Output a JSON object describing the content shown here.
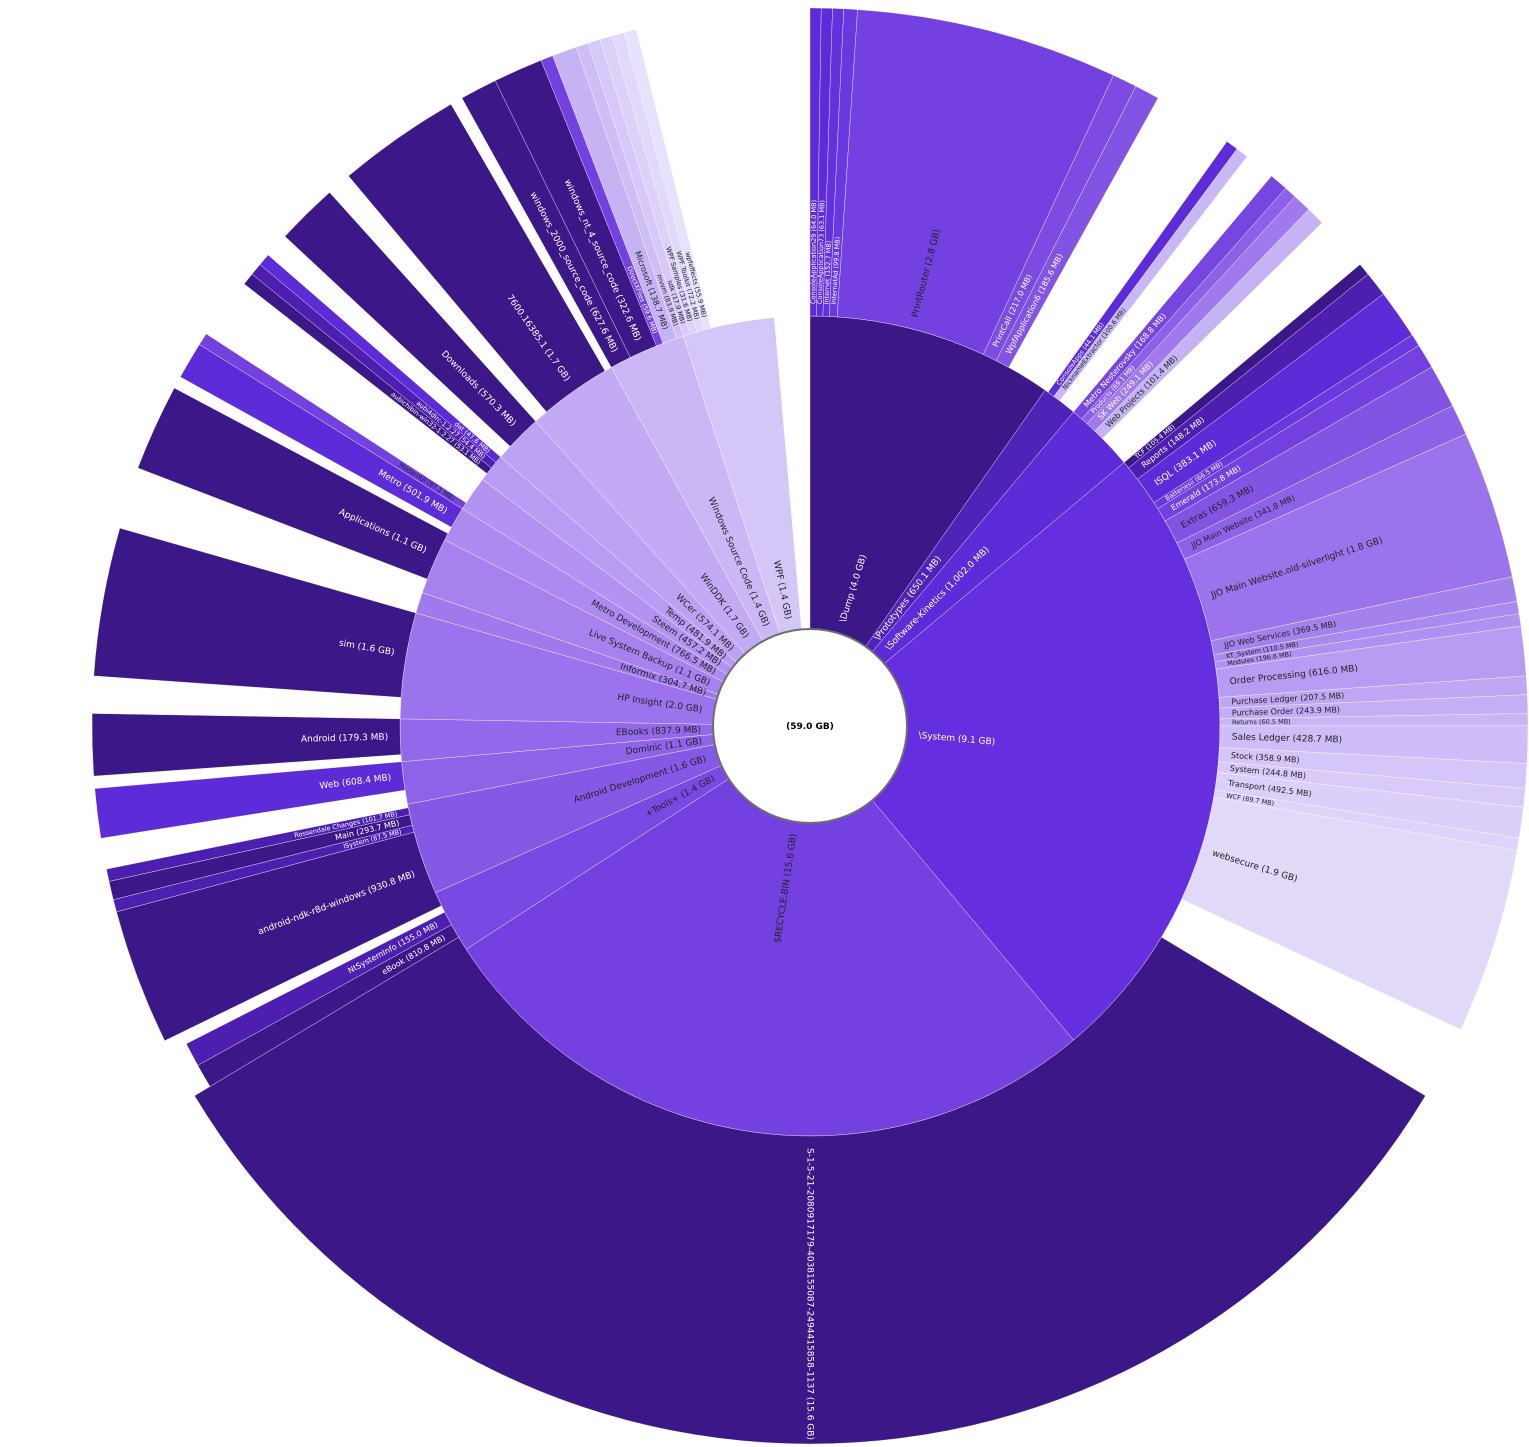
{
  "center_label": "(59.0 GB)",
  "colors": {
    "inner_dark": "#3c1787",
    "inner_violet": "#5e2bd8",
    "inner_medium": "#7441e0",
    "outer_pale": "#e2d9f8",
    "background": "#ffffff"
  },
  "rings": {
    "ring1": [
      {
        "label": "\\Dump (4.0 GB)",
        "fill": "#3c1787",
        "text": "#ffffff"
      },
      {
        "label": "\\Prototypes (650.1 MB)",
        "fill": "#4f22b8",
        "text": "#ffffff"
      },
      {
        "label": "\\Software-Kinetics (1,002.0 MB)",
        "fill": "#5e2bd8",
        "text": "#ffffff"
      },
      {
        "label": "\\System (9.1 GB)",
        "fill": "#652fe0",
        "text": "#ffffff"
      },
      {
        "label": "$RECYCLE.BIN (15.6 GB)",
        "fill": "#7441e0",
        "text": "#222222"
      },
      {
        "label": "+Tools+ (1.4 GB)",
        "fill": "#7a49e3",
        "text": "#222222"
      },
      {
        "label": "Android Development (1.6 GB)",
        "fill": "#8658e6",
        "text": "#222222"
      },
      {
        "label": "Dominic (1.1 GB)",
        "fill": "#8e63e8",
        "text": "#222222"
      },
      {
        "label": "EBooks (837.9 MB)",
        "fill": "#9468ea",
        "text": "#222222"
      },
      {
        "label": "HP Insight (2.0 GB)",
        "fill": "#9b73ec",
        "text": "#222222"
      },
      {
        "label": "Informix (304.7 MB)",
        "fill": "#a07aed",
        "text": "#222222"
      },
      {
        "label": "Live System Backup (1.1 GB)",
        "fill": "#a782ef",
        "text": "#222222"
      },
      {
        "label": "Metro Development (766.5 MB)",
        "fill": "#ad8af0",
        "text": "#222222"
      },
      {
        "label": "Steem (457.2 MB)",
        "fill": "#b393f1",
        "text": "#222222"
      },
      {
        "label": "Temp (481.9 MB)",
        "fill": "#b89bf2",
        "text": "#222222"
      },
      {
        "label": "WCer (574.1 MB)",
        "fill": "#bda2f3",
        "text": "#222222"
      },
      {
        "label": "WinDDK (1.7 GB)",
        "fill": "#c3aaf4",
        "text": "#222222"
      },
      {
        "label": "Windows Source Code (1.4 GB)",
        "fill": "#cbb7f6",
        "text": "#222222"
      },
      {
        "label": "WPF (1.4 GB)",
        "fill": "#d5c6f8",
        "text": "#222222"
      }
    ],
    "ring2": [
      {
        "label": "ConsoleApplication29 (64.0 MB)",
        "fill": "#5e2bd8",
        "text": "#ffffff"
      },
      {
        "label": "ConsoleApplication73 (63.1 MB)",
        "fill": "#5e2bd8",
        "text": "#ffffff"
      },
      {
        "label": "Internet (152.7 MB)",
        "fill": "#6332dc",
        "text": "#ffffff"
      },
      {
        "label": "InternetAd (99.8 MB)",
        "fill": "#6a38de",
        "text": "#ffffff"
      },
      {
        "label": "PrintRouter (2.8 GB)",
        "fill": "#7441e0",
        "text": "#222222"
      },
      {
        "label": "PrintCall (217.0 MB)",
        "fill": "#7d4ae2",
        "text": "#ffffff"
      },
      {
        "label": "WpfApplication6 (185.6 MB)",
        "fill": "#8354e4",
        "text": "#ffffff"
      },
      {
        "label": "ConsoleApps (44.1 MB)",
        "fill": "#5e2bd8",
        "text": "#ffffff"
      },
      {
        "label": "NicknameExtractor (100.6 MB)",
        "fill": "#c9b7f6",
        "text": "#222222"
      },
      {
        "label": "Metro Nesterovsky (168.8 MB)",
        "fill": "#7745e0",
        "text": "#ffffff"
      },
      {
        "label": "Products (69.1 MB)",
        "fill": "#8c61e7",
        "text": "#ffffff"
      },
      {
        "label": "SK Web (249.1 MB)",
        "fill": "#a07aed",
        "text": "#ffffff"
      },
      {
        "label": "Web Projects (101.4 MB)",
        "fill": "#c5b3f4",
        "text": "#222222"
      },
      {
        "label": "TCF (105.4 MB)",
        "fill": "#3c1787",
        "text": "#ffffff"
      },
      {
        "label": "Reports (148.2 MB)",
        "fill": "#4c1fb1",
        "text": "#ffffff"
      },
      {
        "label": "ISQL (383.1 MB)",
        "fill": "#5e2bd8",
        "text": "#ffffff"
      },
      {
        "label": "Batteriesii (66.5 MB)",
        "fill": "#6a38de",
        "text": "#ffffff"
      },
      {
        "label": "Emerald (173.8 MB)",
        "fill": "#7441e0",
        "text": "#ffffff"
      },
      {
        "label": "Extras (659.3 MB)",
        "fill": "#8354e4",
        "text": "#222222"
      },
      {
        "label": "JJO Main Website (341.8 MB)",
        "fill": "#8d62e8",
        "text": "#222222"
      },
      {
        "label": "JJO Main Website.old-silverlight (1.8 GB)",
        "fill": "#9b73ec",
        "text": "#222222"
      },
      {
        "label": "JJO Web Services (369.5 MB)",
        "fill": "#a482ee",
        "text": "#222222"
      },
      {
        "label": "KT_System (110.5 MB)",
        "fill": "#a98af0",
        "text": "#222222"
      },
      {
        "label": "Modules (196.6 MB)",
        "fill": "#af91f1",
        "text": "#222222"
      },
      {
        "label": "Order Processing (616.0 MB)",
        "fill": "#b89cf3",
        "text": "#222222"
      },
      {
        "label": "Purchase Ledger (207.5 MB)",
        "fill": "#bfa7f4",
        "text": "#222222"
      },
      {
        "label": "Purchase Order (243.9 MB)",
        "fill": "#c4aef5",
        "text": "#222222"
      },
      {
        "label": "Returns (60.5 MB)",
        "fill": "#c9b6f6",
        "text": "#222222"
      },
      {
        "label": "Sales Ledger (428.7 MB)",
        "fill": "#cebdf7",
        "text": "#222222"
      },
      {
        "label": "Stock (358.9 MB)",
        "fill": "#d4c6f8",
        "text": "#222222"
      },
      {
        "label": "System (244.8 MB)",
        "fill": "#d8cbf9",
        "text": "#222222"
      },
      {
        "label": "Transport (492.5 MB)",
        "fill": "#dbd0f9",
        "text": "#222222"
      },
      {
        "label": "WCF (89.7 MB)",
        "fill": "#ded3fa",
        "text": "#222222"
      },
      {
        "label": "websecure (1.9 GB)",
        "fill": "#e2d9f8",
        "text": "#222222"
      },
      {
        "label": "S-1-5-21-2080917179-4038155087-2494415858-1137 (15.6 GB)",
        "fill": "#3c1787",
        "text": "#ffffff"
      },
      {
        "label": "eBook (810.8 MB)",
        "fill": "#3c1787",
        "text": "#ffffff"
      },
      {
        "label": "NtSystemInfo (155.0 MB)",
        "fill": "#4c1fb1",
        "text": "#ffffff"
      },
      {
        "label": "android-ndk-r8d-windows (930.8 MB)",
        "fill": "#3c1787",
        "text": "#ffffff"
      },
      {
        "label": "ISystem (87.5 MB)",
        "fill": "#4c1fb1",
        "text": "#ffffff"
      },
      {
        "label": "Main (293.7 MB)",
        "fill": "#3c1787",
        "text": "#ffffff"
      },
      {
        "label": "Rossendale Changes (101.7 MB)",
        "fill": "#4c1fb1",
        "text": "#ffffff"
      },
      {
        "label": "Web (608.4 MB)",
        "fill": "#5e2bd8",
        "text": "#ffffff"
      },
      {
        "label": "Android (179.3 MB)",
        "fill": "#3c1787",
        "text": "#ffffff"
      },
      {
        "label": "sim (1.6 GB)",
        "fill": "#3c1787",
        "text": "#ffffff"
      },
      {
        "label": "Applications (1.1 GB)",
        "fill": "#3c1787",
        "text": "#ffffff"
      },
      {
        "label": "Metro (501.9 MB)",
        "fill": "#5e2bd8",
        "text": "#ffffff"
      },
      {
        "label": "ModernUI (97.1 MB)",
        "fill": "#7441e0",
        "text": "#222222"
      },
      {
        "label": "aubichibin-win32-1.2.27 (53.1 MB)",
        "fill": "#3c1787",
        "text": "#ffffff"
      },
      {
        "label": "aubi4dlrc-1.2.27 (54.4 MB)",
        "fill": "#4c1fb1",
        "text": "#ffffff"
      },
      {
        "label": "dat (47.6 MB)",
        "fill": "#5e2bd8",
        "text": "#ffffff"
      },
      {
        "label": "Downloads (570.3 MB)",
        "fill": "#3c1787",
        "text": "#ffffff"
      },
      {
        "label": "7600.16385.1 (1.7 GB)",
        "fill": "#3c1787",
        "text": "#ffffff"
      },
      {
        "label": "windows_2000_source_code (627.6 MB)",
        "fill": "#3c1787",
        "text": "#ffffff"
      },
      {
        "label": "windows_nt_4_source_code (322.6 MB)",
        "fill": "#3c1787",
        "text": "#ffffff"
      },
      {
        "label": "DirectXFiles (59.6 MB)",
        "fill": "#7441e0",
        "text": "#ffffff"
      },
      {
        "label": "Microsoft (138.7 MB)",
        "fill": "#c5b3f4",
        "text": "#222222"
      },
      {
        "label": "mvvm (83.9 MB)",
        "fill": "#cfbef6",
        "text": "#222222"
      },
      {
        "label": "sdk (17.9 MB)",
        "fill": "#d6c8f8",
        "text": "#222222"
      },
      {
        "label": "WPF Samples (31.6 MB)",
        "fill": "#dcd1f9",
        "text": "#222222"
      },
      {
        "label": "WPF Toolkit (72.2 MB)",
        "fill": "#e2d9fa",
        "text": "#222222"
      },
      {
        "label": "wpfeffects (55.9 MB)",
        "fill": "#e8e1fb",
        "text": "#222222"
      }
    ]
  }
}
